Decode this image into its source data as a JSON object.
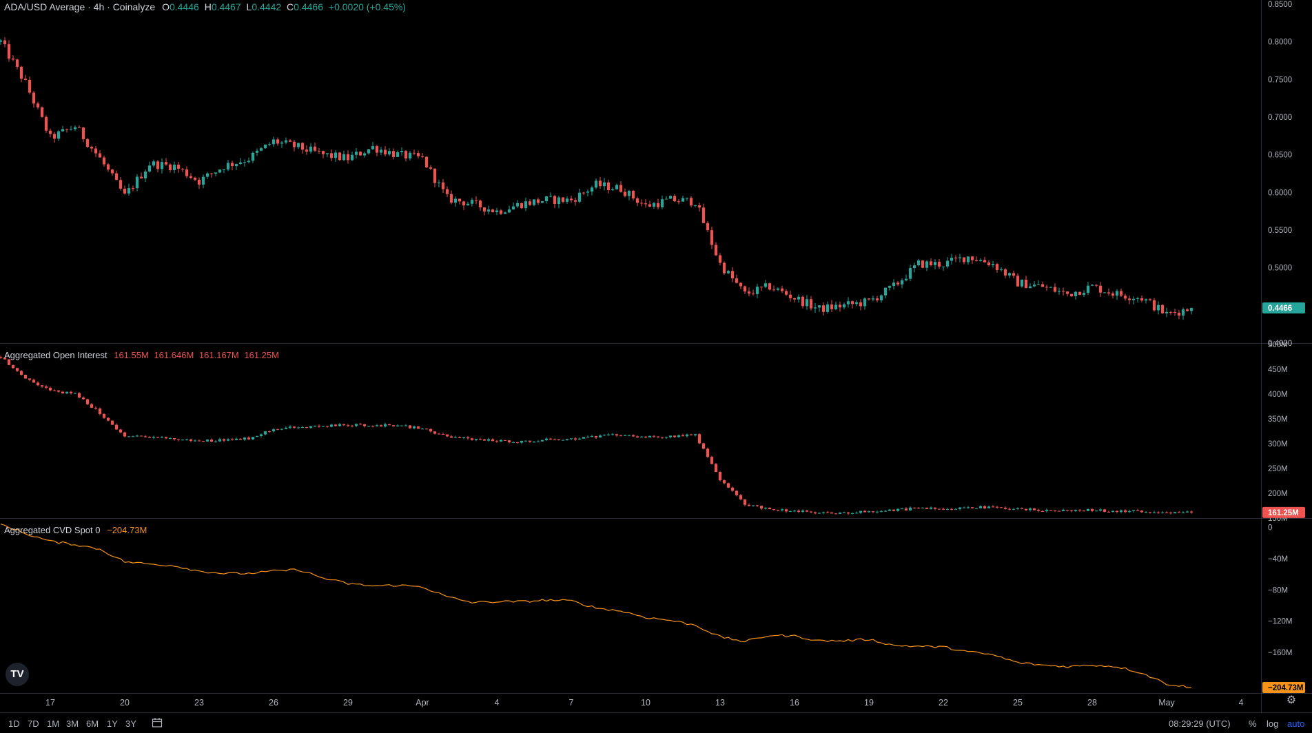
{
  "legend_price": {
    "title": "ADA/USD Average · 4h · Coinalyze",
    "o_label": "O",
    "o": "0.4446",
    "h_label": "H",
    "h": "0.4467",
    "l_label": "L",
    "l": "0.4442",
    "c_label": "C",
    "c": "0.4466",
    "change": "+0.0020 (+0.45%)"
  },
  "legend_oi": {
    "title": "Aggregated Open Interest",
    "values": [
      "161.55M",
      "161.646M",
      "161.167M",
      "161.25M"
    ]
  },
  "legend_cvd": {
    "title": "Aggregated CVD Spot 0",
    "value": "−204.73M"
  },
  "colors": {
    "up": "#26a69a",
    "down": "#ef5350",
    "cvd": "#f7931a",
    "bg": "#000000"
  },
  "toolbar": {
    "ranges": [
      "1D",
      "7D",
      "1M",
      "3M",
      "6M",
      "1Y",
      "3Y"
    ],
    "clock": "08:29:29 (UTC)",
    "percent": "%",
    "log": "log",
    "auto": "auto"
  },
  "logo": "TV",
  "chart_data": [
    {
      "type": "candlestick",
      "name": "ADA/USD Average",
      "interval": "4h",
      "y_axis_ticks": [
        "0.8500",
        "0.8000",
        "0.7500",
        "0.7000",
        "0.6500",
        "0.6000",
        "0.5500",
        "0.5000",
        "0.4500",
        "0.4000"
      ],
      "ylim": [
        0.4,
        0.85
      ],
      "last_value_label": "0.4466",
      "last_value": 0.4466,
      "close_path": [
        {
          "x": "Mar 15",
          "y": 0.8
        },
        {
          "x": "Mar 16",
          "y": 0.745
        },
        {
          "x": "Mar 17",
          "y": 0.672
        },
        {
          "x": "Mar 18",
          "y": 0.688
        },
        {
          "x": "Mar 19",
          "y": 0.645
        },
        {
          "x": "Mar 20",
          "y": 0.595
        },
        {
          "x": "Mar 21",
          "y": 0.638
        },
        {
          "x": "Mar 22",
          "y": 0.635
        },
        {
          "x": "Mar 23",
          "y": 0.615
        },
        {
          "x": "Mar 24",
          "y": 0.635
        },
        {
          "x": "Mar 25",
          "y": 0.645
        },
        {
          "x": "Mar 26",
          "y": 0.668
        },
        {
          "x": "Mar 27",
          "y": 0.66
        },
        {
          "x": "Mar 28",
          "y": 0.65
        },
        {
          "x": "Mar 29",
          "y": 0.645
        },
        {
          "x": "Mar 30",
          "y": 0.66
        },
        {
          "x": "Mar 31",
          "y": 0.65
        },
        {
          "x": "Apr 1",
          "y": 0.645
        },
        {
          "x": "Apr 2",
          "y": 0.592
        },
        {
          "x": "Apr 3",
          "y": 0.585
        },
        {
          "x": "Apr 4",
          "y": 0.575
        },
        {
          "x": "Apr 5",
          "y": 0.585
        },
        {
          "x": "Apr 6",
          "y": 0.59
        },
        {
          "x": "Apr 7",
          "y": 0.59
        },
        {
          "x": "Apr 8",
          "y": 0.61
        },
        {
          "x": "Apr 9",
          "y": 0.605
        },
        {
          "x": "Apr 10",
          "y": 0.582
        },
        {
          "x": "Apr 11",
          "y": 0.59
        },
        {
          "x": "Apr 12",
          "y": 0.588
        },
        {
          "x": "Apr 13",
          "y": 0.505
        },
        {
          "x": "Apr 14",
          "y": 0.465
        },
        {
          "x": "Apr 15",
          "y": 0.475
        },
        {
          "x": "Apr 16",
          "y": 0.46
        },
        {
          "x": "Apr 17",
          "y": 0.445
        },
        {
          "x": "Apr 18",
          "y": 0.45
        },
        {
          "x": "Apr 19",
          "y": 0.455
        },
        {
          "x": "Apr 20",
          "y": 0.475
        },
        {
          "x": "Apr 21",
          "y": 0.505
        },
        {
          "x": "Apr 22",
          "y": 0.505
        },
        {
          "x": "Apr 23",
          "y": 0.515
        },
        {
          "x": "Apr 24",
          "y": 0.505
        },
        {
          "x": "Apr 25",
          "y": 0.48
        },
        {
          "x": "Apr 26",
          "y": 0.475
        },
        {
          "x": "Apr 27",
          "y": 0.465
        },
        {
          "x": "Apr 28",
          "y": 0.475
        },
        {
          "x": "Apr 29",
          "y": 0.465
        },
        {
          "x": "Apr 30",
          "y": 0.46
        },
        {
          "x": "May 1",
          "y": 0.438
        },
        {
          "x": "May 2",
          "y": 0.4466
        }
      ]
    },
    {
      "type": "candlestick",
      "name": "Aggregated Open Interest",
      "y_axis_ticks": [
        "500M",
        "450M",
        "400M",
        "350M",
        "300M",
        "250M",
        "200M",
        "150M"
      ],
      "ylim": [
        150,
        500
      ],
      "last_value_label": "161.25M",
      "last_value": 161.25,
      "close_path": [
        {
          "x": "Mar 15",
          "y": 475
        },
        {
          "x": "Mar 16",
          "y": 433
        },
        {
          "x": "Mar 17",
          "y": 407
        },
        {
          "x": "Mar 18",
          "y": 400
        },
        {
          "x": "Mar 19",
          "y": 362
        },
        {
          "x": "Mar 20",
          "y": 314
        },
        {
          "x": "Mar 21",
          "y": 314
        },
        {
          "x": "Mar 22",
          "y": 309
        },
        {
          "x": "Mar 23",
          "y": 305
        },
        {
          "x": "Mar 24",
          "y": 308
        },
        {
          "x": "Mar 25",
          "y": 311
        },
        {
          "x": "Mar 26",
          "y": 330
        },
        {
          "x": "Mar 27",
          "y": 333
        },
        {
          "x": "Mar 28",
          "y": 335
        },
        {
          "x": "Mar 29",
          "y": 338
        },
        {
          "x": "Mar 30",
          "y": 337
        },
        {
          "x": "Mar 31",
          "y": 337
        },
        {
          "x": "Apr 1",
          "y": 330
        },
        {
          "x": "Apr 2",
          "y": 314
        },
        {
          "x": "Apr 3",
          "y": 309
        },
        {
          "x": "Apr 4",
          "y": 306
        },
        {
          "x": "Apr 5",
          "y": 304
        },
        {
          "x": "Apr 6",
          "y": 308
        },
        {
          "x": "Apr 7",
          "y": 310
        },
        {
          "x": "Apr 8",
          "y": 314
        },
        {
          "x": "Apr 9",
          "y": 318
        },
        {
          "x": "Apr 10",
          "y": 313
        },
        {
          "x": "Apr 11",
          "y": 315
        },
        {
          "x": "Apr 12",
          "y": 318
        },
        {
          "x": "Apr 13",
          "y": 228
        },
        {
          "x": "Apr 14",
          "y": 178
        },
        {
          "x": "Apr 15",
          "y": 168
        },
        {
          "x": "Apr 16",
          "y": 164
        },
        {
          "x": "Apr 17",
          "y": 160
        },
        {
          "x": "Apr 18",
          "y": 160
        },
        {
          "x": "Apr 19",
          "y": 163
        },
        {
          "x": "Apr 20",
          "y": 166
        },
        {
          "x": "Apr 21",
          "y": 170
        },
        {
          "x": "Apr 22",
          "y": 169
        },
        {
          "x": "Apr 23",
          "y": 172
        },
        {
          "x": "Apr 24",
          "y": 171
        },
        {
          "x": "Apr 25",
          "y": 168
        },
        {
          "x": "Apr 26",
          "y": 166
        },
        {
          "x": "Apr 27",
          "y": 165
        },
        {
          "x": "Apr 28",
          "y": 166
        },
        {
          "x": "Apr 29",
          "y": 164
        },
        {
          "x": "Apr 30",
          "y": 163
        },
        {
          "x": "May 1",
          "y": 162
        },
        {
          "x": "May 2",
          "y": 161.25
        }
      ]
    },
    {
      "type": "line",
      "name": "Aggregated CVD Spot",
      "y_axis_ticks": [
        "0",
        "−40M",
        "−80M",
        "−120M",
        "−160M"
      ],
      "ylim": [
        -210,
        10
      ],
      "last_value_label": "−204.73M",
      "last_value": -204.73,
      "x": [
        "Mar 15",
        "Mar 16",
        "Mar 17",
        "Mar 18",
        "Mar 19",
        "Mar 20",
        "Mar 21",
        "Mar 22",
        "Mar 23",
        "Mar 24",
        "Mar 25",
        "Mar 26",
        "Mar 27",
        "Mar 28",
        "Mar 29",
        "Mar 30",
        "Mar 31",
        "Apr 1",
        "Apr 2",
        "Apr 3",
        "Apr 4",
        "Apr 5",
        "Apr 6",
        "Apr 7",
        "Apr 8",
        "Apr 9",
        "Apr 10",
        "Apr 11",
        "Apr 12",
        "Apr 13",
        "Apr 14",
        "Apr 15",
        "Apr 16",
        "Apr 17",
        "Apr 18",
        "Apr 19",
        "Apr 20",
        "Apr 21",
        "Apr 22",
        "Apr 23",
        "Apr 24",
        "Apr 25",
        "Apr 26",
        "Apr 27",
        "Apr 28",
        "Apr 29",
        "Apr 30",
        "May 1",
        "May 2"
      ],
      "values": [
        4,
        -8,
        -18,
        -22,
        -28,
        -44,
        -47,
        -49,
        -56,
        -59,
        -59,
        -56,
        -54,
        -65,
        -72,
        -75,
        -74,
        -76,
        -89,
        -96,
        -95,
        -95,
        -93,
        -94,
        -103,
        -107,
        -115,
        -119,
        -125,
        -140,
        -146,
        -138,
        -139,
        -145,
        -145,
        -143,
        -151,
        -152,
        -153,
        -159,
        -163,
        -173,
        -176,
        -178,
        -176,
        -178,
        -186,
        -200,
        -204.73
      ]
    }
  ],
  "x_axis": {
    "ticks": [
      "17",
      "20",
      "23",
      "26",
      "29",
      "Apr",
      "4",
      "7",
      "10",
      "13",
      "16",
      "19",
      "22",
      "25",
      "28",
      "May",
      "4"
    ],
    "tick_days": [
      2,
      5,
      8,
      11,
      14,
      17,
      20,
      23,
      26,
      29,
      32,
      35,
      38,
      41,
      44,
      47,
      50
    ]
  }
}
